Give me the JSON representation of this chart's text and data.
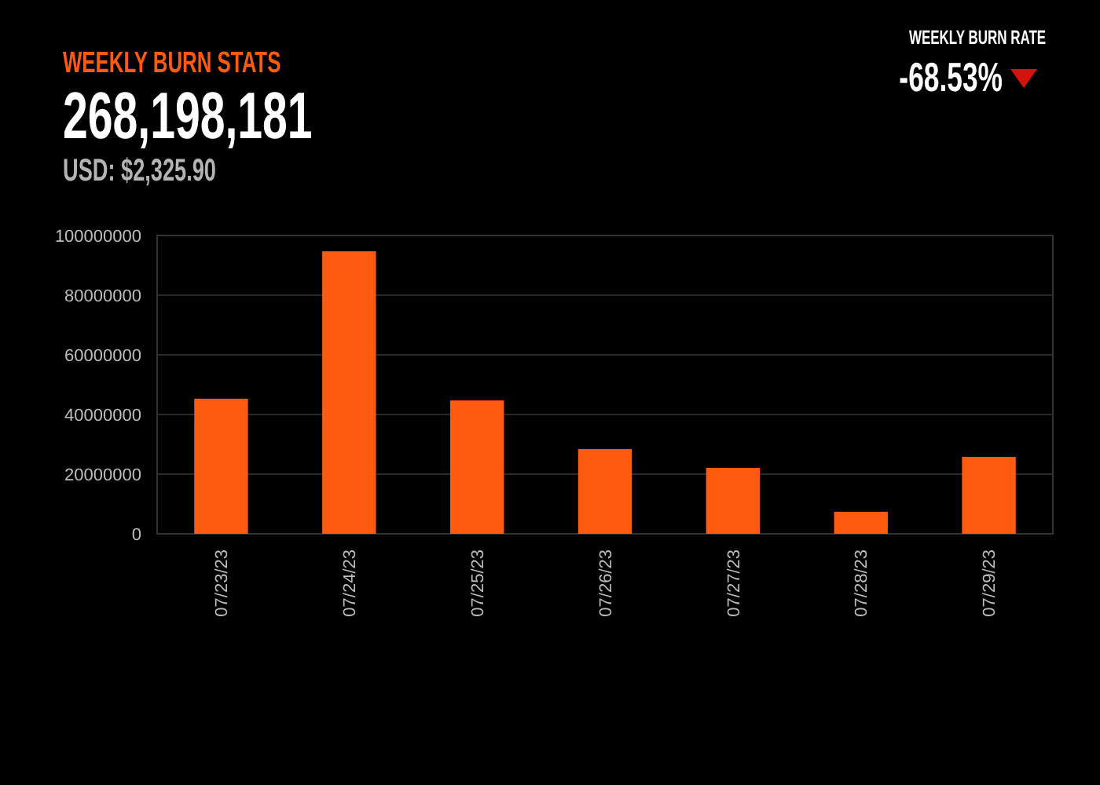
{
  "chart_data": {
    "type": "bar",
    "title": "WEEKLY BURN STATS",
    "subtitle": "268,198,181",
    "annotations": [
      "USD: $2,325.90",
      "WEEKLY BURN RATE",
      "-68.53%"
    ],
    "categories": [
      "07/23/23",
      "07/24/23",
      "07/25/23",
      "07/26/23",
      "07/27/23",
      "07/28/23",
      "07/29/23"
    ],
    "values": [
      45300000,
      94700000,
      44700000,
      28400000,
      22100000,
      7400000,
      25800000
    ],
    "color": "#ff5b10",
    "ylim": [
      0,
      100000000
    ],
    "yticks": [
      0,
      20000000,
      40000000,
      60000000,
      80000000,
      100000000
    ],
    "grid": "y"
  }
}
